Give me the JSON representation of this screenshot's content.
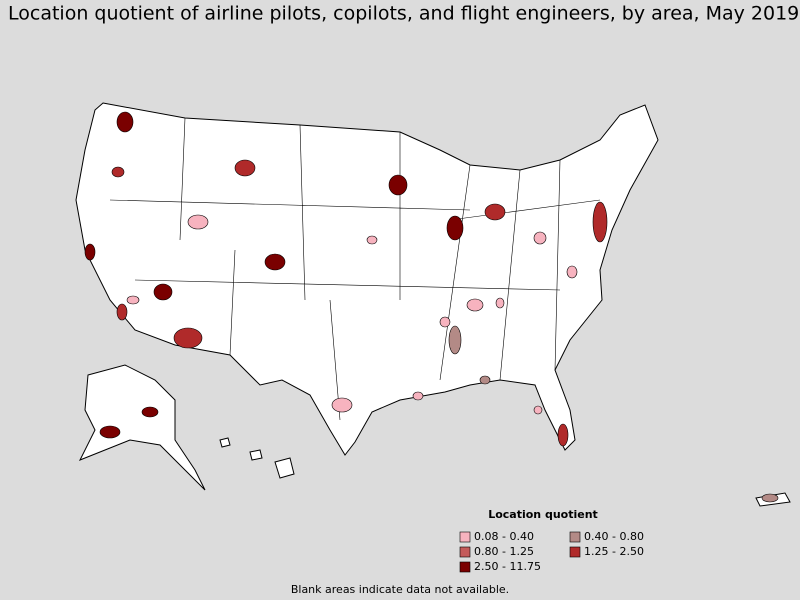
{
  "title": "Location quotient of airline pilots, copilots, and flight engineers, by area, May 2019",
  "legend": {
    "title": "Location quotient",
    "items": [
      {
        "label": "0.08 - 0.40",
        "color": "#f7b3bf"
      },
      {
        "label": "0.40 - 0.80",
        "color": "#b38a86"
      },
      {
        "label": "0.80 - 1.25",
        "color": "#c45a5a"
      },
      {
        "label": "1.25 - 2.50",
        "color": "#b02a2a"
      },
      {
        "label": "2.50 - 11.75",
        "color": "#7a0000"
      }
    ]
  },
  "footnote": "Blank areas indicate data not available."
}
